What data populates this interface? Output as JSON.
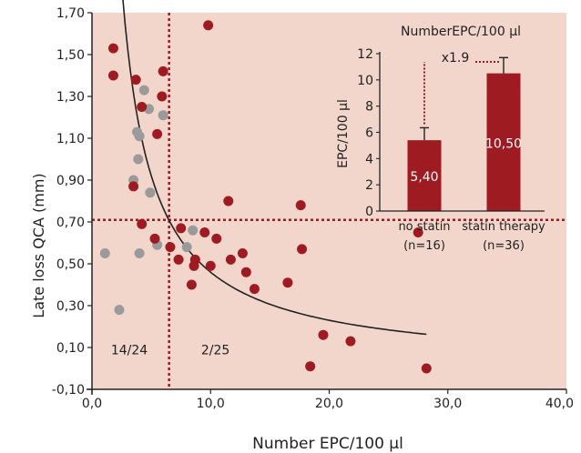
{
  "colors": {
    "plot_background": "#f2d6cc",
    "statin_points": "#9e1b22",
    "no_statin_points": "#9a9a9a",
    "bar_fill": "#9e1b22",
    "threshold_line": "#9e1b22",
    "fit_curve": "#222222"
  },
  "chart_data": [
    {
      "type": "scatter",
      "xlabel": "Number EPC/100 µl",
      "ylabel": "Late loss QCA (mm)",
      "xlim": [
        0,
        40
      ],
      "ylim": [
        -0.1,
        1.7
      ],
      "x_ticks": [
        0,
        10,
        20,
        30,
        40
      ],
      "x_tick_labels": [
        "0,0",
        "10,0",
        "20,0",
        "30,0",
        "40,0"
      ],
      "y_ticks": [
        -0.1,
        0.1,
        0.3,
        0.5,
        0.7,
        0.9,
        1.1,
        1.3,
        1.5,
        1.7
      ],
      "y_tick_labels": [
        "-0,10",
        "0,10",
        "0,30",
        "0,50",
        "0,70",
        "0,90",
        "1,10",
        "1,30",
        "1,50",
        "1,70"
      ],
      "grid": false,
      "thresholds": {
        "x": 6.5,
        "y": 0.71
      },
      "quadrant_labels": [
        {
          "text": "14/24",
          "x": 1.6,
          "y": 0.09
        },
        {
          "text": "2/25",
          "x": 9.2,
          "y": 0.09
        }
      ],
      "fit_curve": {
        "form": "y = a / x",
        "a": 4.6,
        "x_range": [
          1.7,
          28.2
        ]
      },
      "series": [
        {
          "points": [
            [
              1.8,
              1.53
            ],
            [
              1.8,
              1.4
            ],
            [
              3.7,
              1.38
            ],
            [
              6.0,
              1.42
            ],
            [
              5.9,
              1.3
            ],
            [
              4.2,
              1.25
            ],
            [
              5.5,
              1.12
            ],
            [
              3.5,
              0.87
            ],
            [
              4.2,
              0.69
            ],
            [
              5.3,
              0.62
            ],
            [
              6.6,
              0.58
            ],
            [
              7.3,
              0.52
            ],
            [
              7.5,
              0.67
            ],
            [
              8.7,
              0.52
            ],
            [
              8.6,
              0.49
            ],
            [
              8.4,
              0.4
            ],
            [
              9.5,
              0.65
            ],
            [
              9.8,
              1.64
            ],
            [
              10.0,
              0.49
            ],
            [
              10.5,
              0.62
            ],
            [
              11.5,
              0.8
            ],
            [
              11.7,
              0.52
            ],
            [
              12.7,
              0.55
            ],
            [
              13.0,
              0.46
            ],
            [
              13.7,
              0.38
            ],
            [
              16.5,
              0.41
            ],
            [
              17.6,
              0.78
            ],
            [
              17.7,
              0.57
            ],
            [
              18.4,
              0.01
            ],
            [
              19.5,
              0.16
            ],
            [
              21.8,
              0.13
            ],
            [
              27.5,
              0.65
            ],
            [
              28.2,
              0.0
            ]
          ]
        },
        {
          "points": [
            [
              1.1,
              0.55
            ],
            [
              2.3,
              0.28
            ],
            [
              3.5,
              0.9
            ],
            [
              3.8,
              1.13
            ],
            [
              4.0,
              1.11
            ],
            [
              3.9,
              1.0
            ],
            [
              4.0,
              0.55
            ],
            [
              4.4,
              1.33
            ],
            [
              4.8,
              1.24
            ],
            [
              4.9,
              0.84
            ],
            [
              5.5,
              0.59
            ],
            [
              6.0,
              1.21
            ],
            [
              8.0,
              0.58
            ],
            [
              8.5,
              0.66
            ]
          ]
        }
      ]
    },
    {
      "type": "bar",
      "title": "NumberEPC/100 µl",
      "ylabel": "EPC/100 µl",
      "ylim": [
        0,
        12
      ],
      "y_ticks": [
        0,
        2,
        4,
        6,
        8,
        10,
        12
      ],
      "y_tick_labels": [
        "0",
        "2",
        "4",
        "6",
        "8",
        "10",
        "12"
      ],
      "categories": [
        "no statin",
        "statin therapy"
      ],
      "category_sublabels": [
        "(n=16)",
        "(n=36)"
      ],
      "values": [
        5.4,
        10.5
      ],
      "value_labels": [
        "5,40",
        "10,50"
      ],
      "error": [
        0.95,
        1.2
      ],
      "annotation": "x1.9"
    }
  ]
}
